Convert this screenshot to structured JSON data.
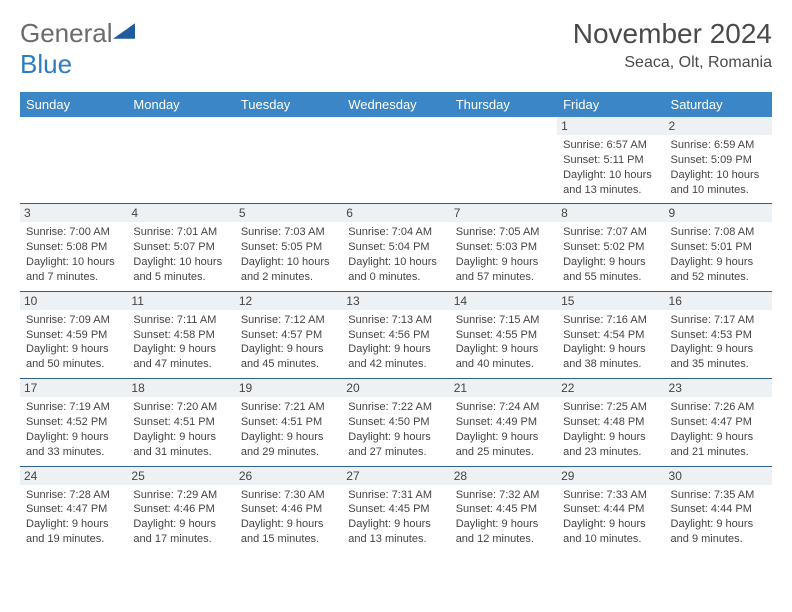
{
  "logo": {
    "part1": "General",
    "part2": "Blue"
  },
  "title": "November 2024",
  "location": "Seaca, Olt, Romania",
  "colors": {
    "header_bg": "#3b86c6",
    "header_fg": "#ffffff",
    "row_border": "#2f5f8f",
    "daynum_bg": "#eef1f3",
    "text": "#444444",
    "page_bg": "#ffffff",
    "logo_general": "#6b6b6b",
    "logo_blue": "#2f7bbf"
  },
  "weekdays": [
    "Sunday",
    "Monday",
    "Tuesday",
    "Wednesday",
    "Thursday",
    "Friday",
    "Saturday"
  ],
  "weeks": [
    [
      {
        "day": ""
      },
      {
        "day": ""
      },
      {
        "day": ""
      },
      {
        "day": ""
      },
      {
        "day": ""
      },
      {
        "day": "1",
        "sunrise": "Sunrise: 6:57 AM",
        "sunset": "Sunset: 5:11 PM",
        "dl1": "Daylight: 10 hours",
        "dl2": "and 13 minutes."
      },
      {
        "day": "2",
        "sunrise": "Sunrise: 6:59 AM",
        "sunset": "Sunset: 5:09 PM",
        "dl1": "Daylight: 10 hours",
        "dl2": "and 10 minutes."
      }
    ],
    [
      {
        "day": "3",
        "sunrise": "Sunrise: 7:00 AM",
        "sunset": "Sunset: 5:08 PM",
        "dl1": "Daylight: 10 hours",
        "dl2": "and 7 minutes."
      },
      {
        "day": "4",
        "sunrise": "Sunrise: 7:01 AM",
        "sunset": "Sunset: 5:07 PM",
        "dl1": "Daylight: 10 hours",
        "dl2": "and 5 minutes."
      },
      {
        "day": "5",
        "sunrise": "Sunrise: 7:03 AM",
        "sunset": "Sunset: 5:05 PM",
        "dl1": "Daylight: 10 hours",
        "dl2": "and 2 minutes."
      },
      {
        "day": "6",
        "sunrise": "Sunrise: 7:04 AM",
        "sunset": "Sunset: 5:04 PM",
        "dl1": "Daylight: 10 hours",
        "dl2": "and 0 minutes."
      },
      {
        "day": "7",
        "sunrise": "Sunrise: 7:05 AM",
        "sunset": "Sunset: 5:03 PM",
        "dl1": "Daylight: 9 hours",
        "dl2": "and 57 minutes."
      },
      {
        "day": "8",
        "sunrise": "Sunrise: 7:07 AM",
        "sunset": "Sunset: 5:02 PM",
        "dl1": "Daylight: 9 hours",
        "dl2": "and 55 minutes."
      },
      {
        "day": "9",
        "sunrise": "Sunrise: 7:08 AM",
        "sunset": "Sunset: 5:01 PM",
        "dl1": "Daylight: 9 hours",
        "dl2": "and 52 minutes."
      }
    ],
    [
      {
        "day": "10",
        "sunrise": "Sunrise: 7:09 AM",
        "sunset": "Sunset: 4:59 PM",
        "dl1": "Daylight: 9 hours",
        "dl2": "and 50 minutes."
      },
      {
        "day": "11",
        "sunrise": "Sunrise: 7:11 AM",
        "sunset": "Sunset: 4:58 PM",
        "dl1": "Daylight: 9 hours",
        "dl2": "and 47 minutes."
      },
      {
        "day": "12",
        "sunrise": "Sunrise: 7:12 AM",
        "sunset": "Sunset: 4:57 PM",
        "dl1": "Daylight: 9 hours",
        "dl2": "and 45 minutes."
      },
      {
        "day": "13",
        "sunrise": "Sunrise: 7:13 AM",
        "sunset": "Sunset: 4:56 PM",
        "dl1": "Daylight: 9 hours",
        "dl2": "and 42 minutes."
      },
      {
        "day": "14",
        "sunrise": "Sunrise: 7:15 AM",
        "sunset": "Sunset: 4:55 PM",
        "dl1": "Daylight: 9 hours",
        "dl2": "and 40 minutes."
      },
      {
        "day": "15",
        "sunrise": "Sunrise: 7:16 AM",
        "sunset": "Sunset: 4:54 PM",
        "dl1": "Daylight: 9 hours",
        "dl2": "and 38 minutes."
      },
      {
        "day": "16",
        "sunrise": "Sunrise: 7:17 AM",
        "sunset": "Sunset: 4:53 PM",
        "dl1": "Daylight: 9 hours",
        "dl2": "and 35 minutes."
      }
    ],
    [
      {
        "day": "17",
        "sunrise": "Sunrise: 7:19 AM",
        "sunset": "Sunset: 4:52 PM",
        "dl1": "Daylight: 9 hours",
        "dl2": "and 33 minutes."
      },
      {
        "day": "18",
        "sunrise": "Sunrise: 7:20 AM",
        "sunset": "Sunset: 4:51 PM",
        "dl1": "Daylight: 9 hours",
        "dl2": "and 31 minutes."
      },
      {
        "day": "19",
        "sunrise": "Sunrise: 7:21 AM",
        "sunset": "Sunset: 4:51 PM",
        "dl1": "Daylight: 9 hours",
        "dl2": "and 29 minutes."
      },
      {
        "day": "20",
        "sunrise": "Sunrise: 7:22 AM",
        "sunset": "Sunset: 4:50 PM",
        "dl1": "Daylight: 9 hours",
        "dl2": "and 27 minutes."
      },
      {
        "day": "21",
        "sunrise": "Sunrise: 7:24 AM",
        "sunset": "Sunset: 4:49 PM",
        "dl1": "Daylight: 9 hours",
        "dl2": "and 25 minutes."
      },
      {
        "day": "22",
        "sunrise": "Sunrise: 7:25 AM",
        "sunset": "Sunset: 4:48 PM",
        "dl1": "Daylight: 9 hours",
        "dl2": "and 23 minutes."
      },
      {
        "day": "23",
        "sunrise": "Sunrise: 7:26 AM",
        "sunset": "Sunset: 4:47 PM",
        "dl1": "Daylight: 9 hours",
        "dl2": "and 21 minutes."
      }
    ],
    [
      {
        "day": "24",
        "sunrise": "Sunrise: 7:28 AM",
        "sunset": "Sunset: 4:47 PM",
        "dl1": "Daylight: 9 hours",
        "dl2": "and 19 minutes."
      },
      {
        "day": "25",
        "sunrise": "Sunrise: 7:29 AM",
        "sunset": "Sunset: 4:46 PM",
        "dl1": "Daylight: 9 hours",
        "dl2": "and 17 minutes."
      },
      {
        "day": "26",
        "sunrise": "Sunrise: 7:30 AM",
        "sunset": "Sunset: 4:46 PM",
        "dl1": "Daylight: 9 hours",
        "dl2": "and 15 minutes."
      },
      {
        "day": "27",
        "sunrise": "Sunrise: 7:31 AM",
        "sunset": "Sunset: 4:45 PM",
        "dl1": "Daylight: 9 hours",
        "dl2": "and 13 minutes."
      },
      {
        "day": "28",
        "sunrise": "Sunrise: 7:32 AM",
        "sunset": "Sunset: 4:45 PM",
        "dl1": "Daylight: 9 hours",
        "dl2": "and 12 minutes."
      },
      {
        "day": "29",
        "sunrise": "Sunrise: 7:33 AM",
        "sunset": "Sunset: 4:44 PM",
        "dl1": "Daylight: 9 hours",
        "dl2": "and 10 minutes."
      },
      {
        "day": "30",
        "sunrise": "Sunrise: 7:35 AM",
        "sunset": "Sunset: 4:44 PM",
        "dl1": "Daylight: 9 hours",
        "dl2": "and 9 minutes."
      }
    ]
  ]
}
